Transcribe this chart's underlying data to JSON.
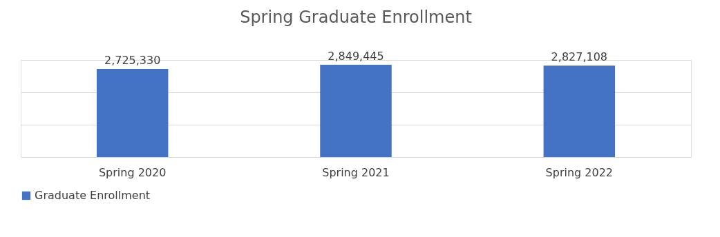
{
  "chart_data": {
    "type": "bar",
    "title": "Spring Graduate Enrollment",
    "categories": [
      "Spring 2020",
      "Spring 2021",
      "Spring 2022"
    ],
    "series": [
      {
        "name": "Graduate Enrollment",
        "color": "#4472c4",
        "values": [
          2725330,
          2849445,
          2827108
        ],
        "value_labels": [
          "2,725,330",
          "2,849,445",
          "2,827,108"
        ]
      }
    ],
    "ylim": [
      0,
      3000000
    ],
    "yticks": [
      {
        "value": 0,
        "label": null
      },
      {
        "value": 1000000,
        "label": null
      },
      {
        "value": 2000000,
        "label": null
      },
      {
        "value": 3000000,
        "label": null
      }
    ],
    "tick_labels": "x",
    "grid": "y",
    "legend": "bottom"
  }
}
